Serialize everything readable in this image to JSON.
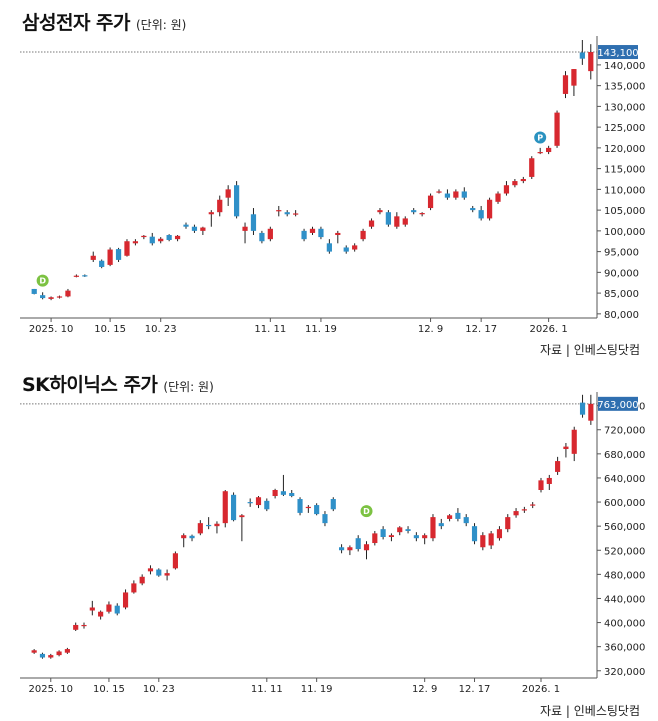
{
  "source_label": "자료 | 인베스팅닷컴",
  "colors": {
    "up": "#d7282f",
    "down": "#2f90c8",
    "axis": "#555555",
    "badge_bg": "#2f6fb0"
  },
  "chart_data": [
    {
      "type": "candlestick",
      "title": "삼성전자 주가",
      "unit": "(단위: 원)",
      "ylim": [
        79000,
        146000
      ],
      "yticks": [
        80000,
        85000,
        90000,
        95000,
        100000,
        105000,
        110000,
        115000,
        120000,
        125000,
        130000,
        135000,
        140000
      ],
      "ytick_labels": [
        "80,000",
        "85,000",
        "90,000",
        "95,000",
        "100,000",
        "105,000",
        "110,000",
        "115,000",
        "120,000",
        "125,000",
        "130,000",
        "135,000",
        "140,000"
      ],
      "x_labels": [
        {
          "label": "2025. 10",
          "index": 2
        },
        {
          "label": "10. 15",
          "index": 9
        },
        {
          "label": "10. 23",
          "index": 15
        },
        {
          "label": "11. 11",
          "index": 28
        },
        {
          "label": "11. 19",
          "index": 34
        },
        {
          "label": "12. 9",
          "index": 47
        },
        {
          "label": "12. 17",
          "index": 53
        },
        {
          "label": "2026. 1",
          "index": 61
        }
      ],
      "last_label": "143,100",
      "last_value": 143100,
      "markers": [
        {
          "text": "D",
          "index": 1,
          "value": 88000,
          "color": "#7cc242"
        },
        {
          "text": "P",
          "index": 60,
          "value": 122500,
          "color": "#2a92c0"
        }
      ],
      "candles": [
        [
          86000,
          86000,
          84700,
          84800
        ],
        [
          84500,
          85200,
          83500,
          83800
        ],
        [
          83600,
          84200,
          83300,
          84000
        ],
        [
          84100,
          84400,
          83700,
          84200
        ],
        [
          84200,
          86000,
          84000,
          85600
        ],
        [
          89000,
          89500,
          88800,
          89200
        ],
        [
          89300,
          89500,
          88900,
          89100
        ],
        [
          93000,
          95000,
          92500,
          94000
        ],
        [
          92800,
          93100,
          91000,
          91300
        ],
        [
          91800,
          96000,
          91500,
          95500
        ],
        [
          95600,
          95900,
          92500,
          93000
        ],
        [
          94000,
          98000,
          93800,
          97500
        ],
        [
          97000,
          98000,
          96500,
          97500
        ],
        [
          98500,
          99000,
          98000,
          98800
        ],
        [
          98600,
          99500,
          96500,
          97000
        ],
        [
          97500,
          98500,
          97000,
          98100
        ],
        [
          99000,
          99200,
          97500,
          97800
        ],
        [
          98000,
          99000,
          97500,
          98800
        ],
        [
          101500,
          102000,
          100500,
          101000
        ],
        [
          101000,
          101500,
          99500,
          100000
        ],
        [
          100000,
          101000,
          99000,
          100800
        ],
        [
          104000,
          105000,
          101000,
          104500
        ],
        [
          104500,
          108500,
          103500,
          107500
        ],
        [
          108000,
          111000,
          106000,
          110000
        ],
        [
          111000,
          112000,
          103000,
          103500
        ],
        [
          100000,
          102000,
          97000,
          101000
        ],
        [
          104000,
          105500,
          99000,
          100000
        ],
        [
          99500,
          100000,
          97000,
          97500
        ],
        [
          98000,
          101000,
          97500,
          100500
        ],
        [
          105000,
          106000,
          103500,
          105000
        ],
        [
          104500,
          105000,
          103500,
          104000
        ],
        [
          104000,
          105000,
          103500,
          104200
        ],
        [
          100000,
          100500,
          97500,
          98000
        ],
        [
          99500,
          101000,
          99000,
          100500
        ],
        [
          100500,
          101000,
          98000,
          98500
        ],
        [
          97000,
          98000,
          94500,
          95000
        ],
        [
          99000,
          100000,
          97000,
          99500
        ],
        [
          96000,
          96500,
          94500,
          95000
        ],
        [
          95500,
          97000,
          95000,
          96500
        ],
        [
          98000,
          100500,
          97500,
          100000
        ],
        [
          101000,
          103000,
          100500,
          102500
        ],
        [
          104500,
          105500,
          104000,
          105000
        ],
        [
          104500,
          105000,
          101000,
          101500
        ],
        [
          101000,
          104500,
          100500,
          103500
        ],
        [
          101500,
          103500,
          101000,
          103000
        ],
        [
          105000,
          105500,
          104000,
          104500
        ],
        [
          104000,
          104500,
          103500,
          104300
        ],
        [
          105500,
          109000,
          105000,
          108500
        ],
        [
          109500,
          110000,
          109000,
          109500
        ],
        [
          109000,
          110000,
          107500,
          108000
        ],
        [
          108000,
          110000,
          107500,
          109500
        ],
        [
          109500,
          110500,
          107500,
          108000
        ],
        [
          105500,
          106000,
          104500,
          105000
        ],
        [
          105000,
          106000,
          102500,
          103000
        ],
        [
          103000,
          108000,
          102500,
          107500
        ],
        [
          107000,
          109500,
          106500,
          109000
        ],
        [
          109000,
          112000,
          108500,
          111000
        ],
        [
          111000,
          112500,
          110500,
          112000
        ],
        [
          112000,
          113000,
          111500,
          112500
        ],
        [
          113000,
          118000,
          112500,
          117500
        ],
        [
          119000,
          120000,
          118500,
          119000
        ],
        [
          119000,
          120500,
          118500,
          120000
        ],
        [
          120500,
          129000,
          120000,
          128500
        ],
        [
          133000,
          138500,
          132000,
          137500
        ],
        [
          135000,
          139000,
          132500,
          139000
        ],
        [
          143000,
          146000,
          140000,
          141500
        ],
        [
          138500,
          145000,
          136500,
          143100
        ]
      ]
    },
    {
      "type": "candlestick",
      "title": "SK하이닉스 주가",
      "unit": "(단위: 원)",
      "ylim": [
        308000,
        776000
      ],
      "yticks": [
        320000,
        360000,
        400000,
        440000,
        480000,
        520000,
        560000,
        600000,
        640000,
        680000,
        720000,
        760000
      ],
      "ytick_labels": [
        "320,000",
        "360,000",
        "400,000",
        "440,000",
        "480,000",
        "520,000",
        "560,000",
        "600,000",
        "640,000",
        "680,000",
        "720,000",
        "760,000"
      ],
      "x_labels": [
        {
          "label": "2025. 10",
          "index": 2
        },
        {
          "label": "10. 15",
          "index": 9
        },
        {
          "label": "10. 23",
          "index": 15
        },
        {
          "label": "11. 11",
          "index": 28
        },
        {
          "label": "11. 19",
          "index": 34
        },
        {
          "label": "12. 9",
          "index": 47
        },
        {
          "label": "12. 17",
          "index": 53
        },
        {
          "label": "2026. 1",
          "index": 61
        }
      ],
      "last_label": "763,000",
      "last_value": 763000,
      "markers": [
        {
          "text": "D",
          "index": 40,
          "value": 585000,
          "color": "#7cc242"
        }
      ],
      "candles": [
        [
          350000,
          356000,
          348000,
          354000
        ],
        [
          348000,
          350000,
          340000,
          342000
        ],
        [
          342000,
          348000,
          340000,
          346000
        ],
        [
          346000,
          354000,
          344000,
          352000
        ],
        [
          350000,
          358000,
          348000,
          356000
        ],
        [
          388000,
          400000,
          386000,
          396000
        ],
        [
          394000,
          400000,
          390000,
          396000
        ],
        [
          420000,
          436000,
          412000,
          425000
        ],
        [
          410000,
          420000,
          405000,
          418000
        ],
        [
          418000,
          435000,
          415000,
          430000
        ],
        [
          428000,
          432000,
          412000,
          415000
        ],
        [
          425000,
          455000,
          422000,
          450000
        ],
        [
          450000,
          470000,
          448000,
          465000
        ],
        [
          465000,
          480000,
          462000,
          476000
        ],
        [
          485000,
          495000,
          480000,
          490000
        ],
        [
          488000,
          490000,
          476000,
          478000
        ],
        [
          478000,
          488000,
          470000,
          482000
        ],
        [
          490000,
          518000,
          488000,
          515000
        ],
        [
          540000,
          548000,
          525000,
          545000
        ],
        [
          544000,
          546000,
          535000,
          540000
        ],
        [
          548000,
          570000,
          545000,
          565000
        ],
        [
          562000,
          575000,
          555000,
          560000
        ],
        [
          560000,
          568000,
          548000,
          564000
        ],
        [
          565000,
          620000,
          558000,
          618000
        ],
        [
          612000,
          616000,
          568000,
          570000
        ],
        [
          575000,
          580000,
          535000,
          578000
        ],
        [
          600000,
          606000,
          592000,
          598000
        ],
        [
          595000,
          610000,
          590000,
          608000
        ],
        [
          602000,
          606000,
          585000,
          588000
        ],
        [
          610000,
          622000,
          606000,
          620000
        ],
        [
          618000,
          645000,
          610000,
          612000
        ],
        [
          615000,
          620000,
          608000,
          610000
        ],
        [
          605000,
          608000,
          578000,
          582000
        ],
        [
          590000,
          595000,
          582000,
          592000
        ],
        [
          595000,
          598000,
          578000,
          580000
        ],
        [
          580000,
          585000,
          560000,
          565000
        ],
        [
          605000,
          608000,
          585000,
          588000
        ],
        [
          525000,
          530000,
          515000,
          520000
        ],
        [
          520000,
          528000,
          512000,
          525000
        ],
        [
          540000,
          545000,
          518000,
          522000
        ],
        [
          520000,
          535000,
          505000,
          530000
        ],
        [
          532000,
          552000,
          528000,
          548000
        ],
        [
          555000,
          560000,
          538000,
          542000
        ],
        [
          542000,
          548000,
          535000,
          545000
        ],
        [
          550000,
          560000,
          545000,
          558000
        ],
        [
          555000,
          560000,
          548000,
          552000
        ],
        [
          545000,
          550000,
          535000,
          540000
        ],
        [
          540000,
          548000,
          530000,
          545000
        ],
        [
          540000,
          580000,
          535000,
          575000
        ],
        [
          565000,
          572000,
          555000,
          560000
        ],
        [
          572000,
          580000,
          568000,
          578000
        ],
        [
          582000,
          590000,
          568000,
          572000
        ],
        [
          575000,
          580000,
          560000,
          565000
        ],
        [
          560000,
          565000,
          530000,
          535000
        ],
        [
          525000,
          550000,
          520000,
          545000
        ],
        [
          528000,
          552000,
          522000,
          548000
        ],
        [
          540000,
          560000,
          536000,
          555000
        ],
        [
          555000,
          580000,
          550000,
          575000
        ],
        [
          578000,
          590000,
          574000,
          585000
        ],
        [
          586000,
          592000,
          582000,
          588000
        ],
        [
          595000,
          600000,
          590000,
          596000
        ],
        [
          620000,
          640000,
          616000,
          636000
        ],
        [
          630000,
          645000,
          620000,
          640000
        ],
        [
          650000,
          675000,
          645000,
          668000
        ],
        [
          688000,
          698000,
          674000,
          692000
        ],
        [
          680000,
          725000,
          668000,
          720000
        ],
        [
          765000,
          778000,
          740000,
          745000
        ],
        [
          735000,
          778000,
          728000,
          763000
        ]
      ]
    }
  ]
}
